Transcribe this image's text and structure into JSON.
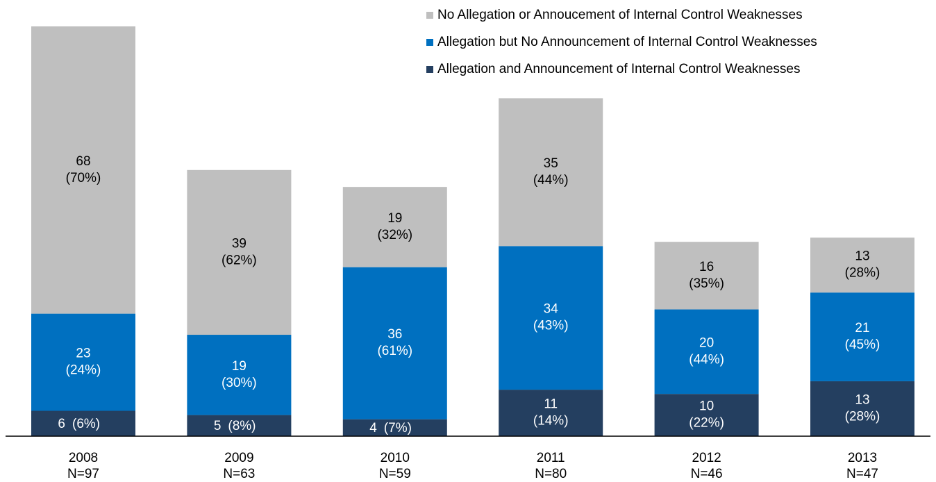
{
  "chart_data": {
    "type": "stacked_bar",
    "categories": [
      "2008",
      "2009",
      "2010",
      "2011",
      "2012",
      "2013"
    ],
    "category_sublabels": [
      "N=97",
      "N=63",
      "N=59",
      "N=80",
      "N=46",
      "N=47"
    ],
    "series": [
      {
        "name": "Allegation and Announcement of Internal Control Weaknesses",
        "color": "#243f60",
        "values": [
          6,
          5,
          4,
          11,
          10,
          13
        ],
        "percent_labels": [
          "(6%)",
          "(8%)",
          "(7%)",
          "(14%)",
          "(22%)",
          "(28%)"
        ]
      },
      {
        "name": "Allegation but No Announcement of Internal Control Weaknesses",
        "color": "#0070c0",
        "values": [
          23,
          19,
          36,
          34,
          20,
          21
        ],
        "percent_labels": [
          "(24%)",
          "(30%)",
          "(61%)",
          "(43%)",
          "(44%)",
          "(45%)"
        ]
      },
      {
        "name": "No Allegation or Annoucement of Internal Control Weaknesses",
        "color": "#bfbfbf",
        "values": [
          68,
          39,
          19,
          35,
          16,
          13
        ],
        "percent_labels": [
          "(70%)",
          "(62%)",
          "(32%)",
          "(44%)",
          "(35%)",
          "(28%)"
        ]
      }
    ]
  }
}
